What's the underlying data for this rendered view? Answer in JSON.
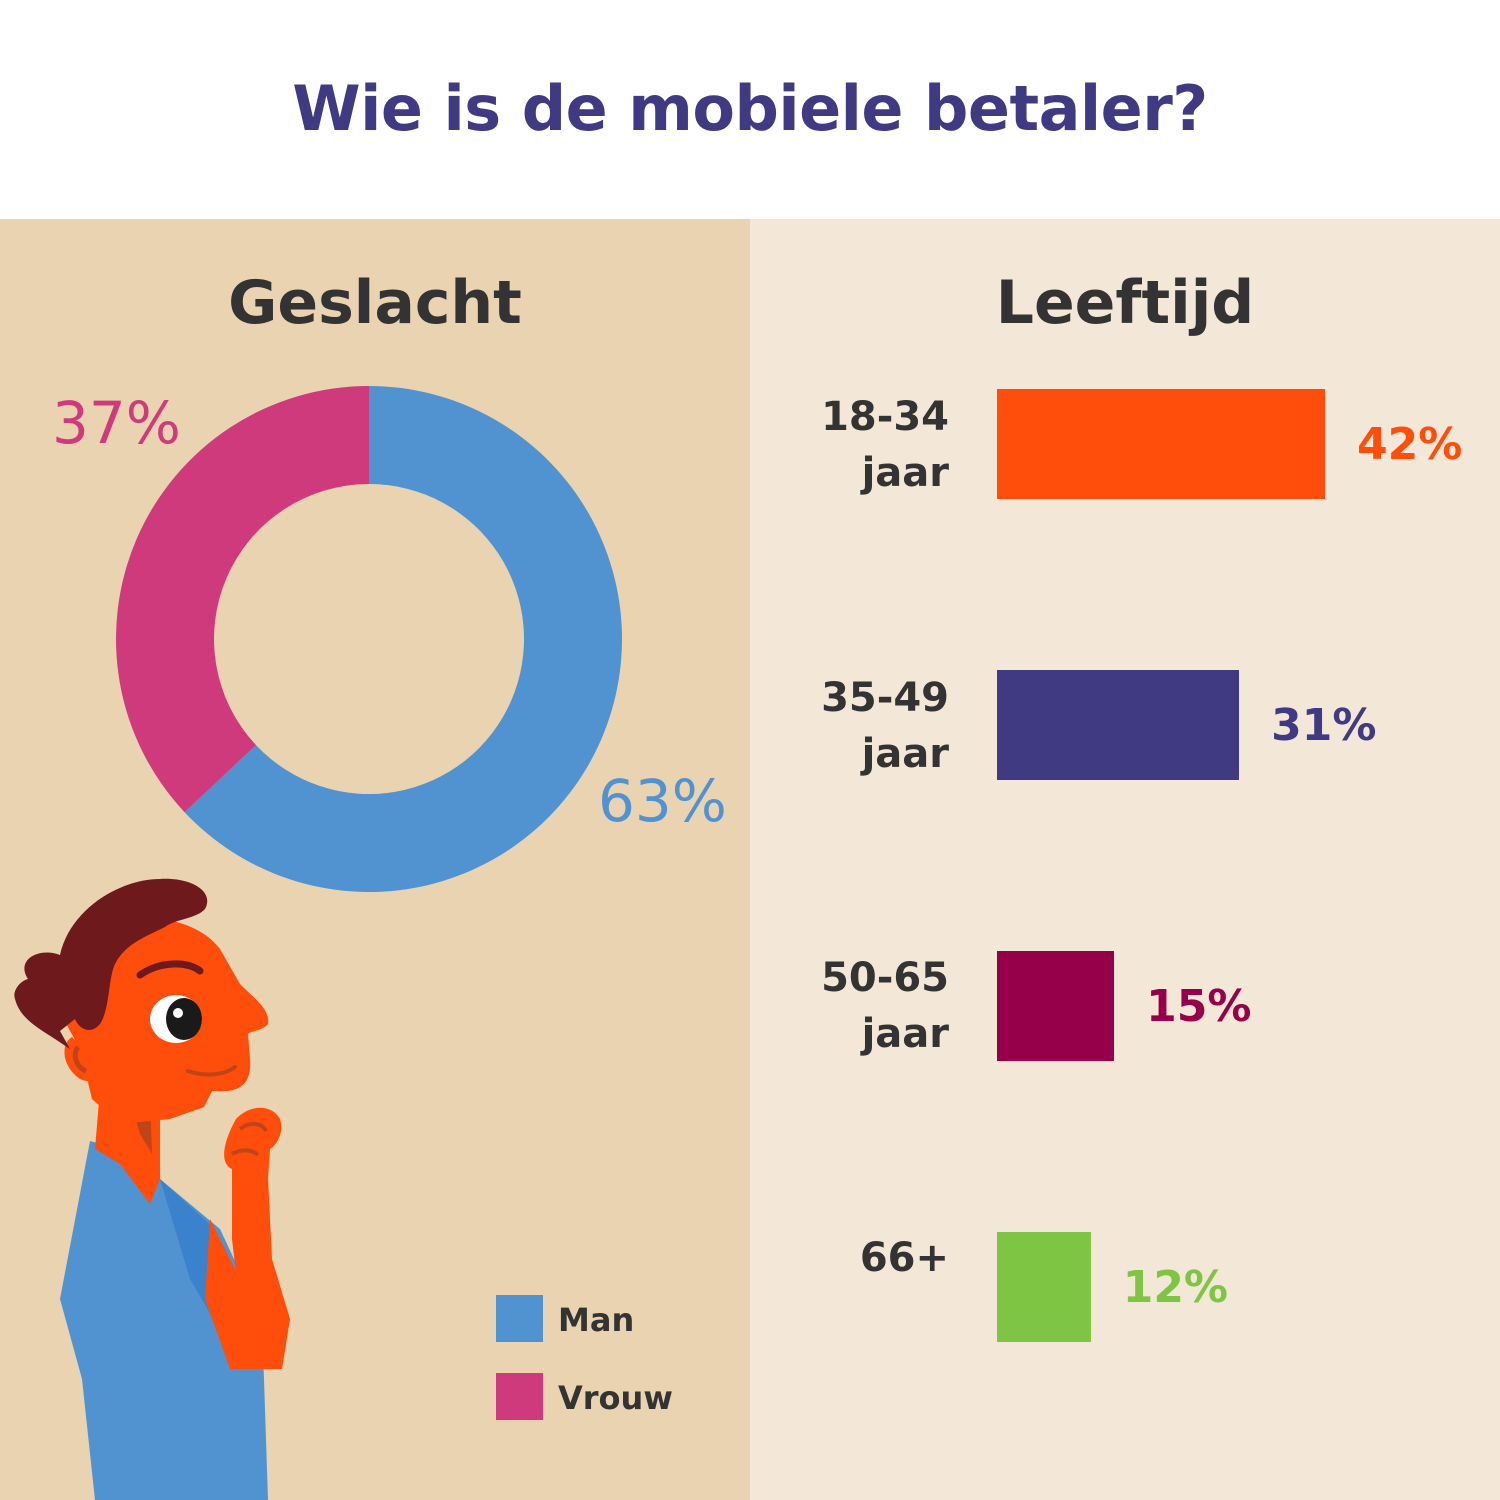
{
  "header": {
    "title": "Wie is de mobiele betaler?"
  },
  "colors": {
    "title": "#3f3a82",
    "left_bg": "#e9d3b0",
    "right_bg": "#f3e7d7",
    "man": "#5193d0",
    "vrouw": "#cf3a7c"
  },
  "chart_data": [
    {
      "type": "pie",
      "title": "Geslacht",
      "donut": true,
      "categories": [
        "Man",
        "Vrouw"
      ],
      "values": [
        63,
        37
      ],
      "labels": [
        "63%",
        "37%"
      ],
      "colors": [
        "#5193d0",
        "#cf3a7c"
      ],
      "legend": {
        "position": "bottom-right",
        "items": [
          "Man",
          "Vrouw"
        ]
      }
    },
    {
      "type": "bar",
      "orientation": "horizontal",
      "title": "Leeftijd",
      "categories": [
        {
          "line1": "18-34",
          "line2": "jaar"
        },
        {
          "line1": "35-49",
          "line2": "jaar"
        },
        {
          "line1": "50-65",
          "line2": "jaar"
        },
        {
          "line1": "",
          "line2": "66+"
        }
      ],
      "values": [
        42,
        31,
        15,
        12
      ],
      "labels": [
        "42%",
        "31%",
        "15%",
        "12%"
      ],
      "colors": [
        "#ff4d0b",
        "#3f3a82",
        "#96004b",
        "#7fc544"
      ]
    }
  ],
  "illustration": {
    "icon": "thinking-man-illustration"
  }
}
